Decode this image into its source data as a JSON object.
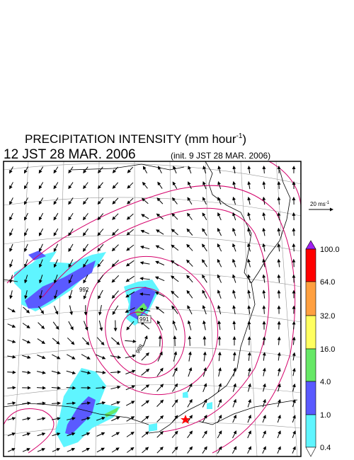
{
  "header": {
    "title": "PRECIPITATION INTENSITY (mm hour",
    "title_sup": "-1",
    "title_end": ")",
    "subtitle": "12 JST 28 MAR. 2006",
    "init": "(init. 9 JST 28 MAR. 2006)"
  },
  "vector_legend": {
    "label": "20 ms",
    "sup": "-1"
  },
  "colorbar": {
    "labels": [
      "100.0",
      "64.0",
      "32.0",
      "16.0",
      "4.0",
      "1.0",
      "0.4"
    ]
  },
  "contour_labels": [
    "992",
    "991",
    "988"
  ]
}
